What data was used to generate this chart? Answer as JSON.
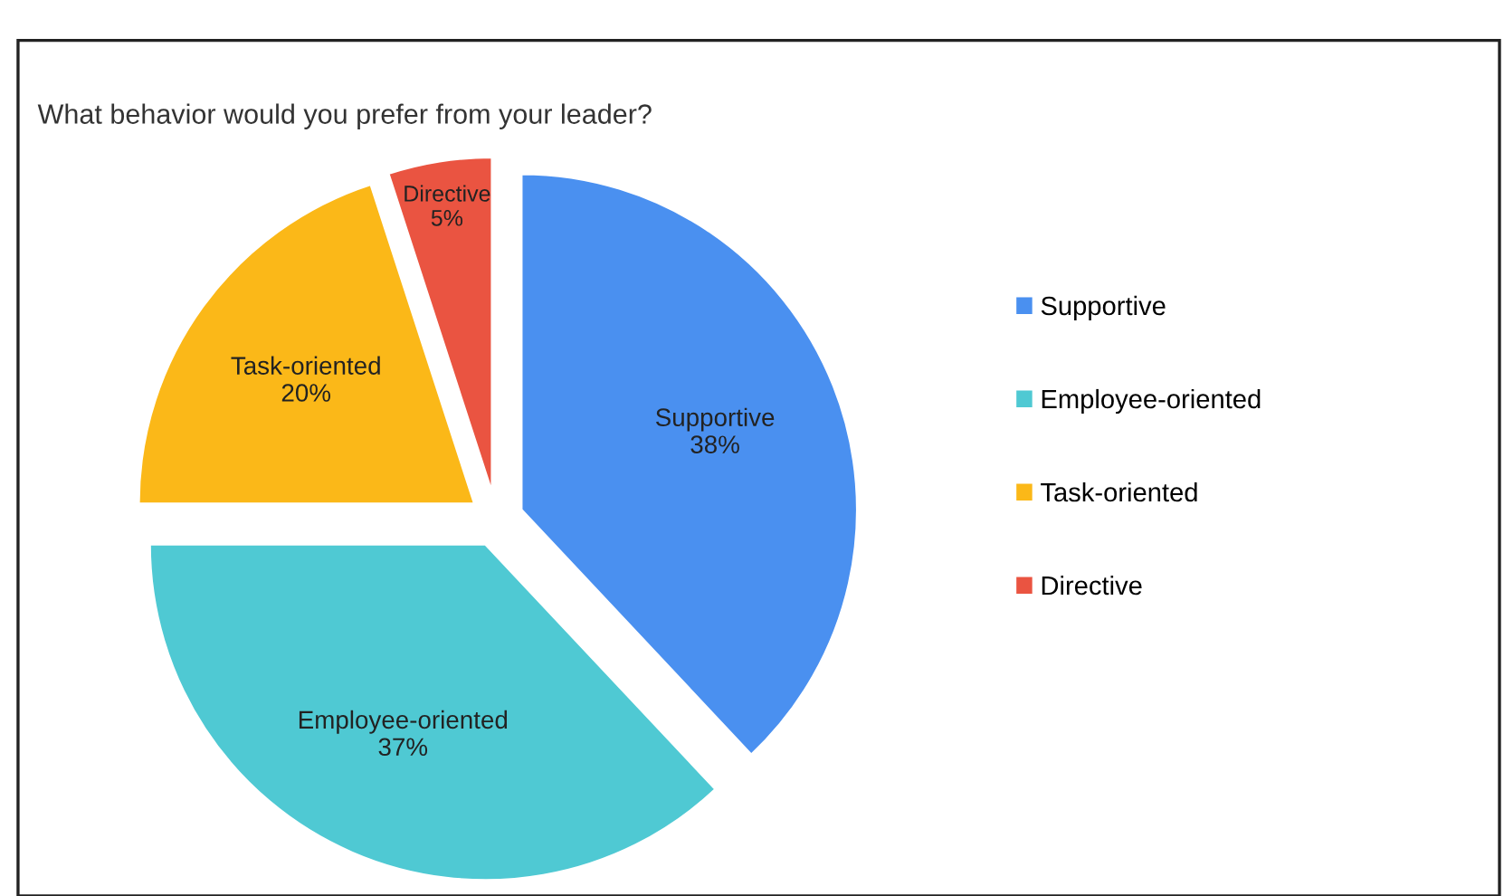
{
  "chart_data": {
    "type": "pie",
    "title": "What behavior would you prefer from your leader?",
    "categories": [
      "Supportive",
      "Employee-oriented",
      "Task-oriented",
      "Directive"
    ],
    "values": [
      38,
      37,
      20,
      5
    ],
    "colors": [
      "#4a90f0",
      "#4fc9d3",
      "#fbb818",
      "#ea5441"
    ],
    "value_labels": [
      "38%",
      "37%",
      "20%",
      "5%"
    ],
    "legend": "right"
  }
}
